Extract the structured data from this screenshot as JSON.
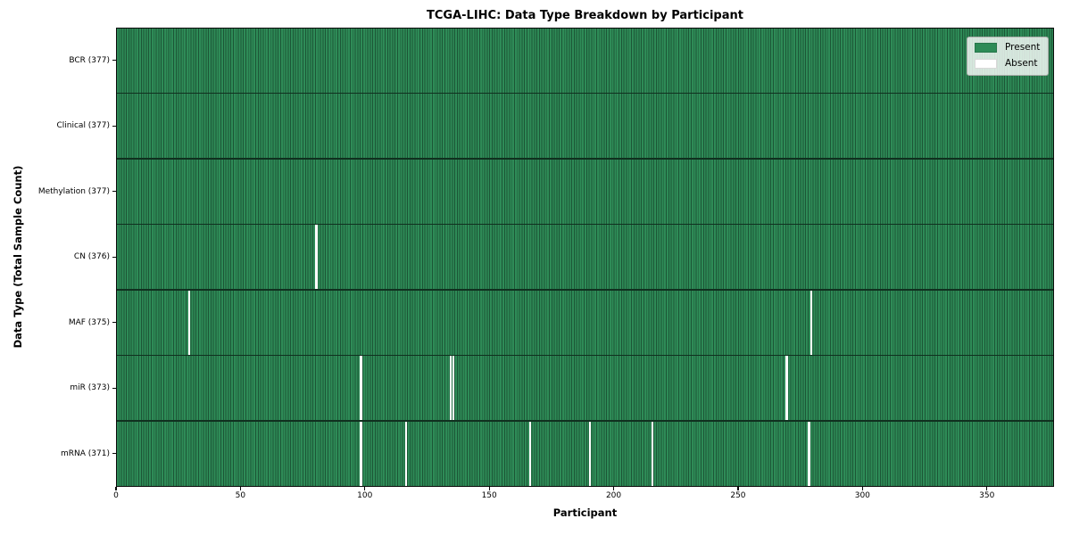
{
  "chart_data": {
    "type": "heatmap",
    "title": "TCGA-LIHC: Data Type Breakdown by Participant",
    "xlabel": "Participant",
    "ylabel": "Data Type (Total Sample Count)",
    "x_ticks": [
      0,
      50,
      100,
      150,
      200,
      250,
      300,
      350
    ],
    "xlim": [
      0,
      377
    ],
    "n_participants": 377,
    "grid": "cell-borders",
    "legend_position": "upper right",
    "legend": [
      {
        "label": "Present",
        "color": "#2e8b57"
      },
      {
        "label": "Absent",
        "color": "#ffffff"
      }
    ],
    "rows": [
      {
        "label": "BCR (377)",
        "data_type": "BCR",
        "present_count": 377,
        "absent_participants": []
      },
      {
        "label": "Clinical (377)",
        "data_type": "Clinical",
        "present_count": 377,
        "absent_participants": []
      },
      {
        "label": "Methylation (377)",
        "data_type": "Methylation",
        "present_count": 377,
        "absent_participants": []
      },
      {
        "label": "CN (376)",
        "data_type": "CN",
        "present_count": 376,
        "absent_participants": [
          80
        ]
      },
      {
        "label": "MAF (375)",
        "data_type": "MAF",
        "present_count": 375,
        "absent_participants": [
          29,
          279
        ]
      },
      {
        "label": "miR (373)",
        "data_type": "miR",
        "present_count": 373,
        "absent_participants": [
          98,
          134,
          135,
          269
        ]
      },
      {
        "label": "mRNA (371)",
        "data_type": "mRNA",
        "present_count": 371,
        "absent_participants": [
          98,
          116,
          166,
          190,
          215,
          278
        ]
      }
    ],
    "colors": {
      "present": "#2e8b57",
      "absent": "#ffffff",
      "cell_edge": "#1c5636",
      "row_separator": "#10301f",
      "plot_border": "#0a0a0a",
      "legend_border": "#a6aaa6"
    }
  }
}
